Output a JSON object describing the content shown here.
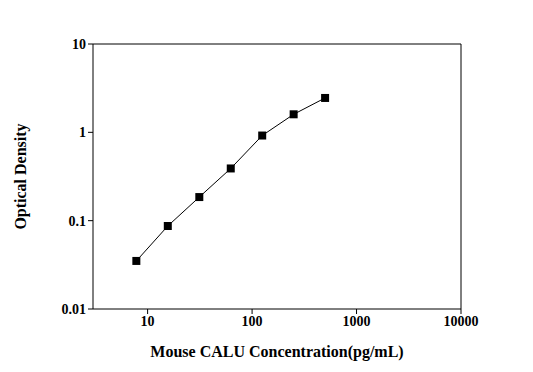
{
  "chart_data": {
    "type": "scatter",
    "x_label": "Mouse CALU Concentration(pg/mL)",
    "y_label": "Optical Density",
    "x": [
      7.8,
      15.6,
      31.25,
      62.5,
      125,
      250,
      500
    ],
    "values": [
      0.035,
      0.087,
      0.185,
      0.39,
      0.92,
      1.6,
      2.45
    ],
    "xlim": [
      3,
      10000
    ],
    "ylim": [
      0.01,
      10
    ],
    "xticks": [
      10,
      100,
      1000,
      10000
    ],
    "yticks": [
      0.01,
      0.1,
      1,
      10
    ],
    "log": true,
    "color": "#000000",
    "marker": "square",
    "line_style": "solid",
    "grid": false
  }
}
